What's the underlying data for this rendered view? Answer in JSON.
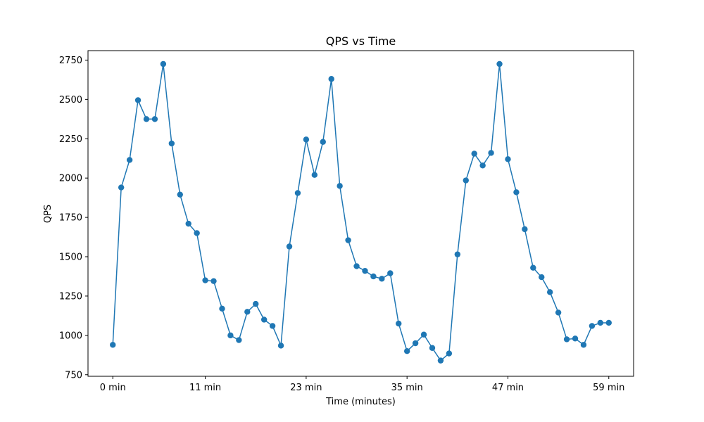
{
  "chart_data": {
    "type": "line",
    "title": "QPS vs Time",
    "xlabel": "Time (minutes)",
    "ylabel": "QPS",
    "xlim": [
      -2.95,
      61.95
    ],
    "ylim": [
      740,
      2810
    ],
    "xticks": [
      0,
      11,
      23,
      35,
      47,
      59
    ],
    "xtick_labels": [
      "0 min",
      "11 min",
      "23 min",
      "35 min",
      "47 min",
      "59 min"
    ],
    "yticks": [
      750,
      1000,
      1250,
      1500,
      1750,
      2000,
      2250,
      2500,
      2750
    ],
    "ytick_labels": [
      "750",
      "1000",
      "1250",
      "1500",
      "1750",
      "2000",
      "2250",
      "2500",
      "2750"
    ],
    "grid": false,
    "color": "#1f77b4",
    "series": [
      {
        "x": [
          0,
          1,
          2,
          3,
          4,
          5,
          6,
          7,
          8,
          9,
          10,
          11,
          12,
          13,
          14,
          15,
          16,
          17,
          18,
          19,
          20,
          21,
          22,
          23,
          24,
          25,
          26,
          27,
          28,
          29,
          30,
          31,
          32,
          33,
          34,
          35,
          36,
          37,
          38,
          39,
          40,
          41,
          42,
          43,
          44,
          45,
          46,
          47,
          48,
          49,
          50,
          51,
          52,
          53,
          54,
          55,
          56,
          57,
          58,
          59
        ],
        "values": [
          940,
          1940,
          2115,
          2495,
          2375,
          2375,
          2725,
          2220,
          1895,
          1710,
          1650,
          1350,
          1345,
          1170,
          1000,
          970,
          1150,
          1200,
          1100,
          1060,
          935,
          1565,
          1905,
          2245,
          2020,
          2230,
          2630,
          1950,
          1605,
          1440,
          1410,
          1375,
          1360,
          1395,
          1075,
          900,
          950,
          1005,
          920,
          840,
          885,
          1515,
          1985,
          2155,
          2080,
          2160,
          2725,
          2120,
          1910,
          1675,
          1430,
          1370,
          1275,
          1145,
          975,
          980,
          940,
          1060,
          1080,
          1080
        ]
      }
    ]
  }
}
